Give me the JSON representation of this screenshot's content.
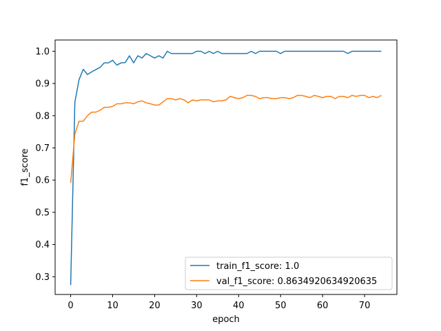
{
  "chart_data": {
    "type": "line",
    "xlabel": "epoch",
    "ylabel": "f1_score",
    "xlim": [
      -3.7,
      77.7
    ],
    "ylim": [
      0.245,
      1.035
    ],
    "xticks": [
      0,
      10,
      20,
      30,
      40,
      50,
      60,
      70
    ],
    "yticks": [
      0.3,
      0.4,
      0.5,
      0.6,
      0.7,
      0.8,
      0.9,
      1.0
    ],
    "ytick_labels": [
      "0.3",
      "0.4",
      "0.5",
      "0.6",
      "0.7",
      "0.8",
      "0.9",
      "1.0"
    ],
    "grid": false,
    "legend_position": "lower-right",
    "x": [
      0,
      1,
      2,
      3,
      4,
      5,
      6,
      7,
      8,
      9,
      10,
      11,
      12,
      13,
      14,
      15,
      16,
      17,
      18,
      19,
      20,
      21,
      22,
      23,
      24,
      25,
      26,
      27,
      28,
      29,
      30,
      31,
      32,
      33,
      34,
      35,
      36,
      37,
      38,
      39,
      40,
      41,
      42,
      43,
      44,
      45,
      46,
      47,
      48,
      49,
      50,
      51,
      52,
      53,
      54,
      55,
      56,
      57,
      58,
      59,
      60,
      61,
      62,
      63,
      64,
      65,
      66,
      67,
      68,
      69,
      70,
      71,
      72,
      73,
      74
    ],
    "series": [
      {
        "name": "train_f1_score: 1.0",
        "color": "#1f77b4",
        "values": [
          0.274,
          0.842,
          0.912,
          0.944,
          0.928,
          0.936,
          0.943,
          0.95,
          0.964,
          0.964,
          0.972,
          0.957,
          0.964,
          0.965,
          0.986,
          0.964,
          0.986,
          0.979,
          0.993,
          0.986,
          0.979,
          0.986,
          0.979,
          1.0,
          0.993,
          0.993,
          0.993,
          0.993,
          0.993,
          0.993,
          1.0,
          1.0,
          0.993,
          1.0,
          0.993,
          1.0,
          0.993,
          0.993,
          0.993,
          0.993,
          0.993,
          0.993,
          0.993,
          1.0,
          0.993,
          1.0,
          1.0,
          1.0,
          1.0,
          1.0,
          0.993,
          1.0,
          1.0,
          1.0,
          1.0,
          1.0,
          1.0,
          1.0,
          1.0,
          1.0,
          1.0,
          1.0,
          1.0,
          1.0,
          1.0,
          1.0,
          0.993,
          1.0,
          1.0,
          1.0,
          1.0,
          1.0,
          1.0,
          1.0,
          1.0
        ]
      },
      {
        "name": "val_f1_score: 0.8634920634920635",
        "color": "#ff7f0e",
        "values": [
          0.591,
          0.743,
          0.783,
          0.783,
          0.8,
          0.811,
          0.811,
          0.817,
          0.826,
          0.826,
          0.829,
          0.837,
          0.837,
          0.84,
          0.84,
          0.837,
          0.843,
          0.846,
          0.84,
          0.837,
          0.833,
          0.833,
          0.843,
          0.853,
          0.853,
          0.849,
          0.853,
          0.849,
          0.84,
          0.849,
          0.846,
          0.849,
          0.849,
          0.849,
          0.843,
          0.846,
          0.846,
          0.849,
          0.86,
          0.856,
          0.853,
          0.856,
          0.863,
          0.863,
          0.86,
          0.853,
          0.856,
          0.856,
          0.853,
          0.853,
          0.856,
          0.856,
          0.853,
          0.856,
          0.863,
          0.863,
          0.86,
          0.856,
          0.863,
          0.86,
          0.856,
          0.86,
          0.86,
          0.853,
          0.86,
          0.86,
          0.856,
          0.863,
          0.86,
          0.863,
          0.863,
          0.856,
          0.86,
          0.856,
          0.863
        ]
      }
    ]
  }
}
